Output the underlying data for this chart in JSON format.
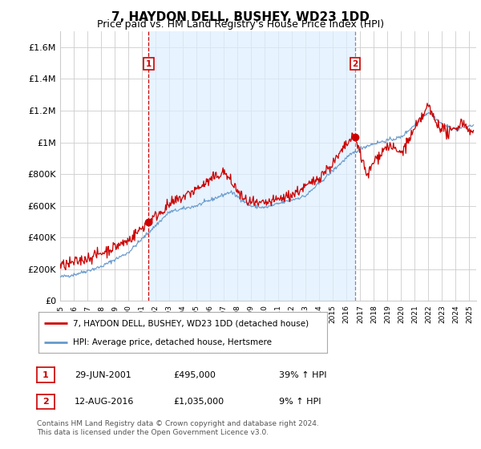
{
  "title": "7, HAYDON DELL, BUSHEY, WD23 1DD",
  "subtitle": "Price paid vs. HM Land Registry's House Price Index (HPI)",
  "ylim": [
    0,
    1700000
  ],
  "yticks": [
    0,
    200000,
    400000,
    600000,
    800000,
    1000000,
    1200000,
    1400000,
    1600000
  ],
  "ytick_labels": [
    "£0",
    "£200K",
    "£400K",
    "£600K",
    "£800K",
    "£1M",
    "£1.2M",
    "£1.4M",
    "£1.6M"
  ],
  "xlim_start": 1995.0,
  "xlim_end": 2025.5,
  "xtick_years": [
    1995,
    1996,
    1997,
    1998,
    1999,
    2000,
    2001,
    2002,
    2003,
    2004,
    2005,
    2006,
    2007,
    2008,
    2009,
    2010,
    2011,
    2012,
    2013,
    2014,
    2015,
    2016,
    2017,
    2018,
    2019,
    2020,
    2021,
    2022,
    2023,
    2024,
    2025
  ],
  "legend_entries": [
    "7, HAYDON DELL, BUSHEY, WD23 1DD (detached house)",
    "HPI: Average price, detached house, Hertsmere"
  ],
  "red_line_color": "#cc0000",
  "blue_line_color": "#6699cc",
  "shade_color": "#ddeeff",
  "marker1_x": 2001.49,
  "marker1_y": 495000,
  "marker2_x": 2016.62,
  "marker2_y": 1035000,
  "vline1_color": "#cc0000",
  "vline2_color": "#888888",
  "annotation1": "1",
  "annotation2": "2",
  "table_rows": [
    {
      "num": "1",
      "date": "29-JUN-2001",
      "price": "£495,000",
      "pct": "39% ↑ HPI"
    },
    {
      "num": "2",
      "date": "12-AUG-2016",
      "price": "£1,035,000",
      "pct": "9% ↑ HPI"
    }
  ],
  "footer": "Contains HM Land Registry data © Crown copyright and database right 2024.\nThis data is licensed under the Open Government Licence v3.0.",
  "background_color": "#ffffff",
  "grid_color": "#cccccc",
  "title_fontsize": 11,
  "subtitle_fontsize": 9,
  "axis_fontsize": 8
}
